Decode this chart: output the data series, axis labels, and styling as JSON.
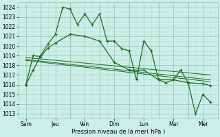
{
  "xlabel": "Pression niveau de la mer( hPa )",
  "background_color": "#cceee8",
  "grid_major_color": "#99ccbb",
  "grid_minor_color": "#bbddcc",
  "line_color": "#1a6b1a",
  "ylim": [
    1012.5,
    1024.5
  ],
  "xlim": [
    0,
    13.5
  ],
  "day_labels": [
    "Sam",
    "Jeu",
    "Ven",
    "Dim",
    "Lun",
    "Mar",
    "Mer"
  ],
  "day_positions": [
    0.5,
    2.5,
    4.5,
    6.5,
    8.5,
    10.5,
    12.5
  ],
  "day_vlines": [
    1.5,
    3.5,
    5.5,
    7.5,
    9.5,
    11.5
  ],
  "series1_x": [
    0.5,
    1.0,
    1.5,
    2.0,
    2.5,
    3.0,
    3.5,
    4.0,
    4.5,
    5.0,
    5.5,
    6.0,
    6.5,
    7.0,
    7.5,
    8.0,
    8.5,
    9.0,
    9.5,
    10.0,
    10.5,
    11.0,
    11.5,
    12.0,
    12.5,
    13.0
  ],
  "series1_y": [
    1016.0,
    1017.5,
    1019.0,
    1020.2,
    1021.2,
    1024.0,
    1023.8,
    1022.2,
    1023.3,
    1022.2,
    1023.3,
    1020.5,
    1020.5,
    1019.7,
    1019.5,
    1016.5,
    1020.5,
    1019.5,
    1016.5,
    1016.2,
    1016.5,
    1017.5,
    1016.2,
    1013.0,
    1015.0,
    1014.2
  ],
  "series2_x": [
    0.5,
    1.0,
    1.5,
    2.0,
    2.5,
    3.5,
    4.5,
    5.5,
    6.5,
    7.5,
    8.5,
    9.5,
    10.5,
    11.5,
    12.5,
    13.0
  ],
  "series2_y": [
    1016.0,
    1019.0,
    1018.9,
    1019.8,
    1020.3,
    1021.2,
    1021.0,
    1020.5,
    1018.3,
    1017.5,
    1017.5,
    1016.5,
    1016.5,
    1016.2,
    1016.1,
    1015.9
  ],
  "series3_x": [
    0.5,
    13.0
  ],
  "series3_y": [
    1018.8,
    1017.0
  ],
  "series4_x": [
    0.5,
    13.0
  ],
  "series4_y": [
    1018.6,
    1016.5
  ],
  "series5_x": [
    0.5,
    13.0
  ],
  "series5_y": [
    1018.5,
    1016.3
  ],
  "yticks": [
    1013,
    1014,
    1015,
    1016,
    1017,
    1018,
    1019,
    1020,
    1021,
    1022,
    1023,
    1024
  ]
}
